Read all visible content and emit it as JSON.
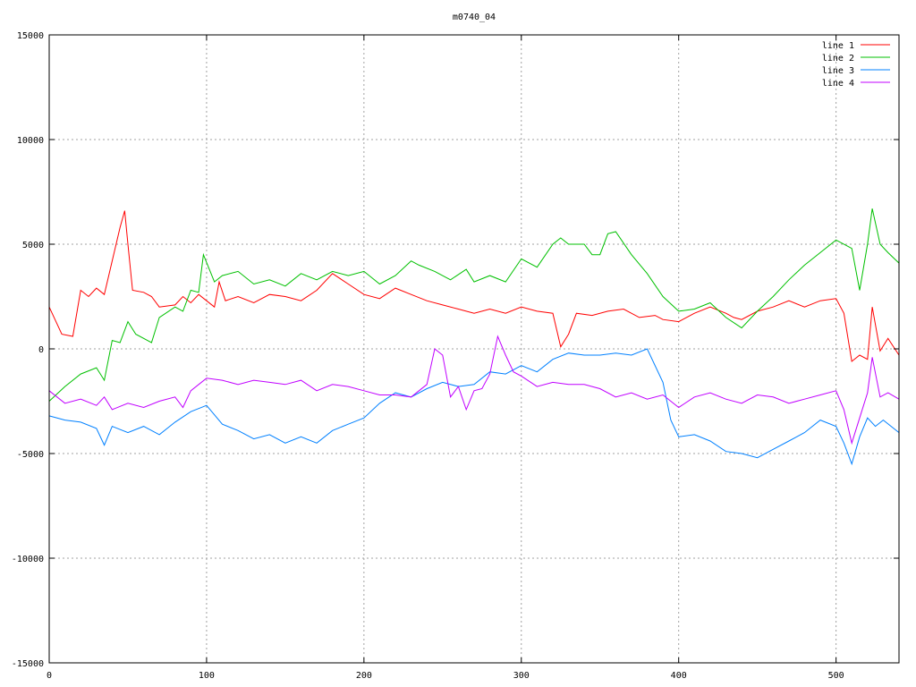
{
  "chart_data": {
    "type": "line",
    "title": "m0740_04",
    "xlim": [
      0,
      540
    ],
    "ylim": [
      -15000,
      15000
    ],
    "xticks": [
      0,
      100,
      200,
      300,
      400,
      500
    ],
    "yticks": [
      -15000,
      -10000,
      -5000,
      0,
      5000,
      10000,
      15000
    ],
    "grid": true,
    "legend_position": "top-right",
    "series": [
      {
        "name": "line 1",
        "color": "#ff0000",
        "points": [
          [
            0,
            2000
          ],
          [
            8,
            700
          ],
          [
            15,
            600
          ],
          [
            20,
            2800
          ],
          [
            25,
            2500
          ],
          [
            30,
            2900
          ],
          [
            35,
            2600
          ],
          [
            40,
            4200
          ],
          [
            45,
            5800
          ],
          [
            48,
            6600
          ],
          [
            50,
            5000
          ],
          [
            53,
            2800
          ],
          [
            60,
            2700
          ],
          [
            65,
            2500
          ],
          [
            70,
            2000
          ],
          [
            80,
            2100
          ],
          [
            85,
            2500
          ],
          [
            90,
            2200
          ],
          [
            95,
            2600
          ],
          [
            100,
            2300
          ],
          [
            105,
            2000
          ],
          [
            108,
            3200
          ],
          [
            112,
            2300
          ],
          [
            120,
            2500
          ],
          [
            130,
            2200
          ],
          [
            140,
            2600
          ],
          [
            150,
            2500
          ],
          [
            160,
            2300
          ],
          [
            170,
            2800
          ],
          [
            180,
            3600
          ],
          [
            190,
            3100
          ],
          [
            200,
            2600
          ],
          [
            210,
            2400
          ],
          [
            220,
            2900
          ],
          [
            230,
            2600
          ],
          [
            240,
            2300
          ],
          [
            250,
            2100
          ],
          [
            260,
            1900
          ],
          [
            270,
            1700
          ],
          [
            280,
            1900
          ],
          [
            290,
            1700
          ],
          [
            300,
            2000
          ],
          [
            310,
            1800
          ],
          [
            320,
            1700
          ],
          [
            325,
            100
          ],
          [
            330,
            700
          ],
          [
            335,
            1700
          ],
          [
            345,
            1600
          ],
          [
            355,
            1800
          ],
          [
            365,
            1900
          ],
          [
            375,
            1500
          ],
          [
            385,
            1600
          ],
          [
            390,
            1400
          ],
          [
            400,
            1300
          ],
          [
            410,
            1700
          ],
          [
            420,
            2000
          ],
          [
            430,
            1700
          ],
          [
            435,
            1500
          ],
          [
            440,
            1400
          ],
          [
            450,
            1800
          ],
          [
            460,
            2000
          ],
          [
            470,
            2300
          ],
          [
            480,
            2000
          ],
          [
            490,
            2300
          ],
          [
            500,
            2400
          ],
          [
            505,
            1700
          ],
          [
            510,
            -600
          ],
          [
            515,
            -300
          ],
          [
            520,
            -500
          ],
          [
            523,
            2000
          ],
          [
            528,
            -100
          ],
          [
            533,
            500
          ],
          [
            540,
            -300
          ]
        ]
      },
      {
        "name": "line 2",
        "color": "#00c000",
        "points": [
          [
            0,
            -2500
          ],
          [
            10,
            -1800
          ],
          [
            20,
            -1200
          ],
          [
            30,
            -900
          ],
          [
            35,
            -1500
          ],
          [
            40,
            400
          ],
          [
            45,
            300
          ],
          [
            50,
            1300
          ],
          [
            55,
            700
          ],
          [
            65,
            300
          ],
          [
            70,
            1500
          ],
          [
            80,
            2000
          ],
          [
            85,
            1800
          ],
          [
            90,
            2800
          ],
          [
            95,
            2700
          ],
          [
            98,
            4500
          ],
          [
            105,
            3200
          ],
          [
            110,
            3500
          ],
          [
            120,
            3700
          ],
          [
            130,
            3100
          ],
          [
            140,
            3300
          ],
          [
            150,
            3000
          ],
          [
            160,
            3600
          ],
          [
            170,
            3300
          ],
          [
            180,
            3700
          ],
          [
            190,
            3500
          ],
          [
            200,
            3700
          ],
          [
            210,
            3100
          ],
          [
            220,
            3500
          ],
          [
            230,
            4200
          ],
          [
            235,
            4000
          ],
          [
            245,
            3700
          ],
          [
            255,
            3300
          ],
          [
            265,
            3800
          ],
          [
            270,
            3200
          ],
          [
            280,
            3500
          ],
          [
            290,
            3200
          ],
          [
            300,
            4300
          ],
          [
            310,
            3900
          ],
          [
            320,
            5000
          ],
          [
            325,
            5300
          ],
          [
            330,
            5000
          ],
          [
            340,
            5000
          ],
          [
            345,
            4500
          ],
          [
            350,
            4500
          ],
          [
            355,
            5500
          ],
          [
            360,
            5600
          ],
          [
            370,
            4500
          ],
          [
            380,
            3600
          ],
          [
            390,
            2500
          ],
          [
            400,
            1800
          ],
          [
            410,
            1900
          ],
          [
            420,
            2200
          ],
          [
            430,
            1500
          ],
          [
            440,
            1000
          ],
          [
            450,
            1800
          ],
          [
            460,
            2500
          ],
          [
            470,
            3300
          ],
          [
            480,
            4000
          ],
          [
            490,
            4600
          ],
          [
            500,
            5200
          ],
          [
            510,
            4800
          ],
          [
            515,
            2800
          ],
          [
            520,
            5000
          ],
          [
            523,
            6700
          ],
          [
            528,
            5000
          ],
          [
            533,
            4600
          ],
          [
            540,
            4100
          ]
        ]
      },
      {
        "name": "line 3",
        "color": "#0080ff",
        "points": [
          [
            0,
            -3200
          ],
          [
            10,
            -3400
          ],
          [
            20,
            -3500
          ],
          [
            30,
            -3800
          ],
          [
            35,
            -4600
          ],
          [
            40,
            -3700
          ],
          [
            50,
            -4000
          ],
          [
            60,
            -3700
          ],
          [
            70,
            -4100
          ],
          [
            80,
            -3500
          ],
          [
            90,
            -3000
          ],
          [
            100,
            -2700
          ],
          [
            110,
            -3600
          ],
          [
            120,
            -3900
          ],
          [
            130,
            -4300
          ],
          [
            140,
            -4100
          ],
          [
            150,
            -4500
          ],
          [
            160,
            -4200
          ],
          [
            170,
            -4500
          ],
          [
            180,
            -3900
          ],
          [
            190,
            -3600
          ],
          [
            200,
            -3300
          ],
          [
            210,
            -2600
          ],
          [
            220,
            -2100
          ],
          [
            230,
            -2300
          ],
          [
            240,
            -1900
          ],
          [
            250,
            -1600
          ],
          [
            260,
            -1800
          ],
          [
            270,
            -1700
          ],
          [
            280,
            -1100
          ],
          [
            290,
            -1200
          ],
          [
            300,
            -800
          ],
          [
            310,
            -1100
          ],
          [
            320,
            -500
          ],
          [
            330,
            -200
          ],
          [
            340,
            -300
          ],
          [
            350,
            -300
          ],
          [
            360,
            -200
          ],
          [
            370,
            -300
          ],
          [
            380,
            0
          ],
          [
            390,
            -1600
          ],
          [
            395,
            -3400
          ],
          [
            400,
            -4200
          ],
          [
            410,
            -4100
          ],
          [
            420,
            -4400
          ],
          [
            430,
            -4900
          ],
          [
            440,
            -5000
          ],
          [
            450,
            -5200
          ],
          [
            460,
            -4800
          ],
          [
            470,
            -4400
          ],
          [
            480,
            -4000
          ],
          [
            490,
            -3400
          ],
          [
            500,
            -3700
          ],
          [
            505,
            -4500
          ],
          [
            510,
            -5500
          ],
          [
            515,
            -4200
          ],
          [
            520,
            -3300
          ],
          [
            525,
            -3700
          ],
          [
            530,
            -3400
          ],
          [
            540,
            -4000
          ]
        ]
      },
      {
        "name": "line 4",
        "color": "#c000ff",
        "points": [
          [
            0,
            -2000
          ],
          [
            10,
            -2600
          ],
          [
            20,
            -2400
          ],
          [
            30,
            -2700
          ],
          [
            35,
            -2300
          ],
          [
            40,
            -2900
          ],
          [
            50,
            -2600
          ],
          [
            60,
            -2800
          ],
          [
            70,
            -2500
          ],
          [
            80,
            -2300
          ],
          [
            85,
            -2800
          ],
          [
            90,
            -2000
          ],
          [
            100,
            -1400
          ],
          [
            110,
            -1500
          ],
          [
            120,
            -1700
          ],
          [
            130,
            -1500
          ],
          [
            140,
            -1600
          ],
          [
            150,
            -1700
          ],
          [
            160,
            -1500
          ],
          [
            170,
            -2000
          ],
          [
            180,
            -1700
          ],
          [
            190,
            -1800
          ],
          [
            200,
            -2000
          ],
          [
            210,
            -2200
          ],
          [
            220,
            -2200
          ],
          [
            230,
            -2300
          ],
          [
            240,
            -1700
          ],
          [
            245,
            0
          ],
          [
            250,
            -300
          ],
          [
            255,
            -2300
          ],
          [
            260,
            -1800
          ],
          [
            265,
            -2900
          ],
          [
            270,
            -2000
          ],
          [
            275,
            -1900
          ],
          [
            280,
            -1200
          ],
          [
            285,
            600
          ],
          [
            290,
            -300
          ],
          [
            295,
            -1100
          ],
          [
            300,
            -1300
          ],
          [
            310,
            -1800
          ],
          [
            320,
            -1600
          ],
          [
            330,
            -1700
          ],
          [
            340,
            -1700
          ],
          [
            350,
            -1900
          ],
          [
            360,
            -2300
          ],
          [
            370,
            -2100
          ],
          [
            380,
            -2400
          ],
          [
            390,
            -2200
          ],
          [
            400,
            -2800
          ],
          [
            410,
            -2300
          ],
          [
            420,
            -2100
          ],
          [
            430,
            -2400
          ],
          [
            440,
            -2600
          ],
          [
            450,
            -2200
          ],
          [
            460,
            -2300
          ],
          [
            470,
            -2600
          ],
          [
            480,
            -2400
          ],
          [
            490,
            -2200
          ],
          [
            500,
            -2000
          ],
          [
            505,
            -2900
          ],
          [
            510,
            -4500
          ],
          [
            515,
            -3300
          ],
          [
            520,
            -2100
          ],
          [
            523,
            -400
          ],
          [
            528,
            -2300
          ],
          [
            533,
            -2100
          ],
          [
            540,
            -2400
          ]
        ]
      }
    ]
  }
}
